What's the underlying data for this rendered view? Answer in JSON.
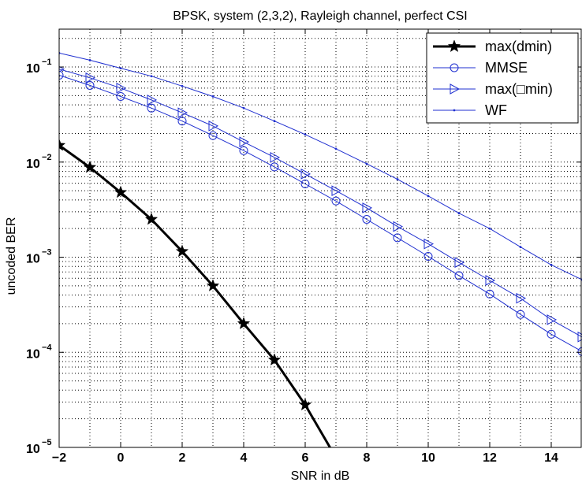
{
  "chart_data": {
    "type": "line",
    "title": "BPSK, system (2,3,2), Rayleigh channel, perfect CSI",
    "xlabel": "SNR in dB",
    "ylabel": "uncoded BER",
    "xlim": [
      -2,
      15
    ],
    "ylim": [
      1e-05,
      0.25
    ],
    "y_scale": "log",
    "grid": true,
    "legend_position": "top-right",
    "x_ticks": [
      "-2",
      "0",
      "2",
      "4",
      "6",
      "8",
      "10",
      "12",
      "14"
    ],
    "y_ticks": [
      {
        "base": "10",
        "exp": "-5",
        "value": 1e-05
      },
      {
        "base": "10",
        "exp": "-4",
        "value": 0.0001
      },
      {
        "base": "10",
        "exp": "-3",
        "value": 0.001
      },
      {
        "base": "10",
        "exp": "-2",
        "value": 0.01
      },
      {
        "base": "10",
        "exp": "-1",
        "value": 0.1
      }
    ],
    "series": [
      {
        "name": "max(dmin)",
        "color": "#000000",
        "marker": "star",
        "line_width": 3,
        "x": [
          -2,
          -1,
          0,
          1,
          2,
          3,
          4,
          5,
          6,
          7
        ],
        "y": [
          0.015,
          0.0088,
          0.0048,
          0.0025,
          0.00115,
          0.0005,
          0.0002,
          8.3e-05,
          2.8e-05,
          7.8e-06
        ]
      },
      {
        "name": "MMSE",
        "color": "#1f2fd0",
        "marker": "circle",
        "line_width": 1,
        "x": [
          -2,
          -1,
          0,
          1,
          2,
          3,
          4,
          5,
          6,
          7,
          8,
          9,
          10,
          11,
          12,
          13,
          14,
          15
        ],
        "y": [
          0.082,
          0.064,
          0.049,
          0.037,
          0.027,
          0.019,
          0.0132,
          0.0089,
          0.0059,
          0.0039,
          0.0025,
          0.0016,
          0.00102,
          0.00064,
          0.00041,
          0.00025,
          0.000155,
          0.000102
        ]
      },
      {
        "name": "max(□min)",
        "color": "#1f2fd0",
        "marker": "triangle-right",
        "line_width": 1,
        "x": [
          -2,
          -1,
          0,
          1,
          2,
          3,
          4,
          5,
          6,
          7,
          8,
          9,
          10,
          11,
          12,
          13,
          14,
          15
        ],
        "y": [
          0.095,
          0.077,
          0.06,
          0.045,
          0.033,
          0.024,
          0.0163,
          0.0112,
          0.0075,
          0.005,
          0.0033,
          0.0021,
          0.00138,
          0.00088,
          0.00057,
          0.00037,
          0.00022,
          0.000145
        ]
      },
      {
        "name": "WF",
        "color": "#1f2fd0",
        "marker": "dot",
        "line_width": 1,
        "x": [
          -2,
          -1,
          0,
          1,
          2,
          3,
          4,
          5,
          6,
          7,
          8,
          9,
          10,
          11,
          12,
          13,
          14,
          15
        ],
        "y": [
          0.14,
          0.118,
          0.097,
          0.08,
          0.063,
          0.049,
          0.037,
          0.027,
          0.0195,
          0.0138,
          0.0096,
          0.0066,
          0.0044,
          0.0029,
          0.002,
          0.00128,
          0.00083,
          0.00058
        ]
      }
    ]
  }
}
